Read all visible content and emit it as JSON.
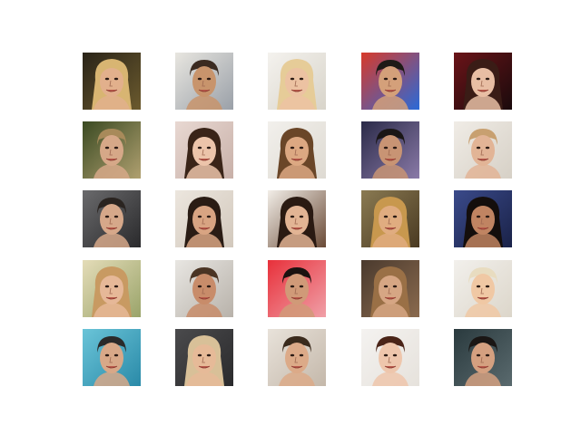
{
  "figure": {
    "background": "#ffffff",
    "rows": 5,
    "cols": 5
  },
  "samples": [
    {
      "bg": "#2a2418",
      "bg2": "#6b5a2e",
      "hair": "#d8b572",
      "skin": "#e2b08c",
      "style": "long"
    },
    {
      "bg": "#e8e6e0",
      "bg2": "#9aa0a8",
      "hair": "#3a2a20",
      "skin": "#c8946c",
      "style": "short"
    },
    {
      "bg": "#f4f2ee",
      "bg2": "#d8d4ca",
      "hair": "#e6cc98",
      "skin": "#ecc2a2",
      "style": "long"
    },
    {
      "bg": "#d83a2a",
      "bg2": "#2a6ad8",
      "hair": "#1e1a16",
      "skin": "#d4a07a",
      "style": "short"
    },
    {
      "bg": "#6a1418",
      "bg2": "#1a0a0c",
      "hair": "#3a1c16",
      "skin": "#e8bea4",
      "style": "long"
    },
    {
      "bg": "#3a4a22",
      "bg2": "#b0a070",
      "hair": "#a88a5a",
      "skin": "#d6a888",
      "style": "short"
    },
    {
      "bg": "#e8d8d2",
      "bg2": "#c8b0a8",
      "hair": "#3a2418",
      "skin": "#ecc4aa",
      "style": "long"
    },
    {
      "bg": "#f2f0ec",
      "bg2": "#dedad2",
      "hair": "#6a4628",
      "skin": "#dca882",
      "style": "long"
    },
    {
      "bg": "#2a2a48",
      "bg2": "#8a7aa8",
      "hair": "#1a1616",
      "skin": "#c89474",
      "style": "short"
    },
    {
      "bg": "#f0ece6",
      "bg2": "#d6d0c6",
      "hair": "#c8a070",
      "skin": "#e2b496",
      "style": "short"
    },
    {
      "bg": "#6a6a6c",
      "bg2": "#2a2a2c",
      "hair": "#2a2420",
      "skin": "#d6a88a",
      "style": "short"
    },
    {
      "bg": "#ece6de",
      "bg2": "#d2c8bc",
      "hair": "#2a1c14",
      "skin": "#d8a482",
      "style": "long"
    },
    {
      "bg": "#f2eee8",
      "bg2": "#6a4a36",
      "hair": "#2a1a12",
      "skin": "#e2b494",
      "style": "long"
    },
    {
      "bg": "#8a7a52",
      "bg2": "#4a3a22",
      "hair": "#c8984e",
      "skin": "#e0ac80",
      "style": "long"
    },
    {
      "bg": "#3a4a8a",
      "bg2": "#1a2248",
      "hair": "#140e0c",
      "skin": "#c08462",
      "style": "long"
    },
    {
      "bg": "#e4dcb8",
      "bg2": "#9aa46a",
      "hair": "#c89a62",
      "skin": "#e6b898",
      "style": "long"
    },
    {
      "bg": "#e8e6e2",
      "bg2": "#b8b2aa",
      "hair": "#4a3424",
      "skin": "#c88c6a",
      "style": "short"
    },
    {
      "bg": "#e8303a",
      "bg2": "#f0a0a8",
      "hair": "#1a1210",
      "skin": "#d09a78",
      "style": "short"
    },
    {
      "bg": "#4a3a2e",
      "bg2": "#8a6a4e",
      "hair": "#9a7046",
      "skin": "#d6a684",
      "style": "long"
    },
    {
      "bg": "#f2f0ec",
      "bg2": "#dcd6ca",
      "hair": "#e8dcc0",
      "skin": "#f0c8a4",
      "style": "short"
    },
    {
      "bg": "#6ac4d8",
      "bg2": "#2a8aa8",
      "hair": "#2a2a2a",
      "skin": "#d8a888",
      "style": "short"
    },
    {
      "bg": "#4a4a4c",
      "bg2": "#2a2a2c",
      "hair": "#d8c098",
      "skin": "#e6ba98",
      "style": "long"
    },
    {
      "bg": "#e8e2da",
      "bg2": "#c4b8aa",
      "hair": "#3a2a1c",
      "skin": "#dcaa88",
      "style": "short"
    },
    {
      "bg": "#f4f2f0",
      "bg2": "#e6e2dc",
      "hair": "#4a2418",
      "skin": "#eec6ac",
      "style": "short"
    },
    {
      "bg": "#2a3a3e",
      "bg2": "#5a6a6e",
      "hair": "#1a1614",
      "skin": "#d4a080",
      "style": "short"
    }
  ]
}
